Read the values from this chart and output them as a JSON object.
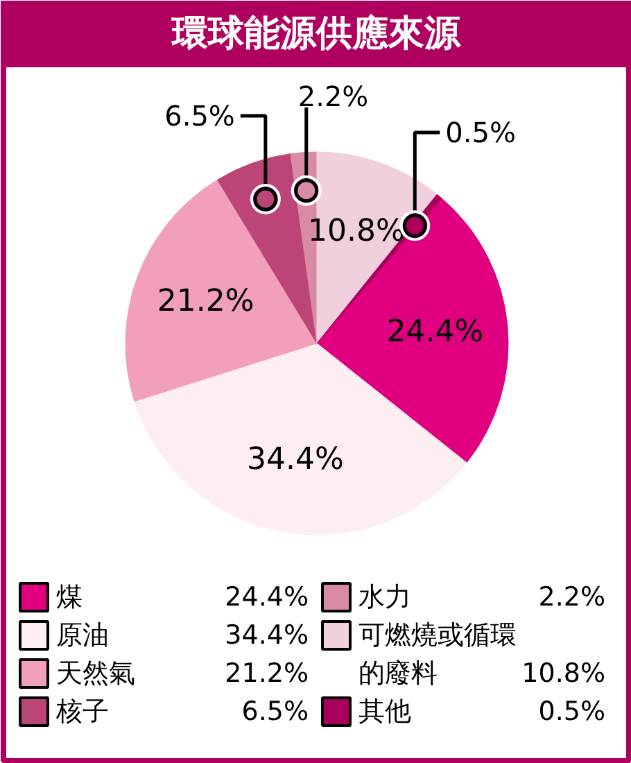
{
  "chart_data": {
    "type": "pie",
    "title": "環球能源供應來源",
    "categories": [
      "煤",
      "原油",
      "天然氣",
      "核子",
      "水力",
      "可燃燒或循環的廢料",
      "其他"
    ],
    "values": [
      24.4,
      34.4,
      21.2,
      6.5,
      2.2,
      10.8,
      0.5
    ],
    "colors": [
      "#e0007f",
      "#fdeef2",
      "#f29fbb",
      "#bc4577",
      "#d98aa6",
      "#f0d0dc",
      "#a8005a"
    ],
    "value_labels": [
      "24.4%",
      "34.4%",
      "21.2%",
      "6.5%",
      "2.2%",
      "10.8%",
      "0.5%"
    ],
    "legend": "bottom"
  }
}
